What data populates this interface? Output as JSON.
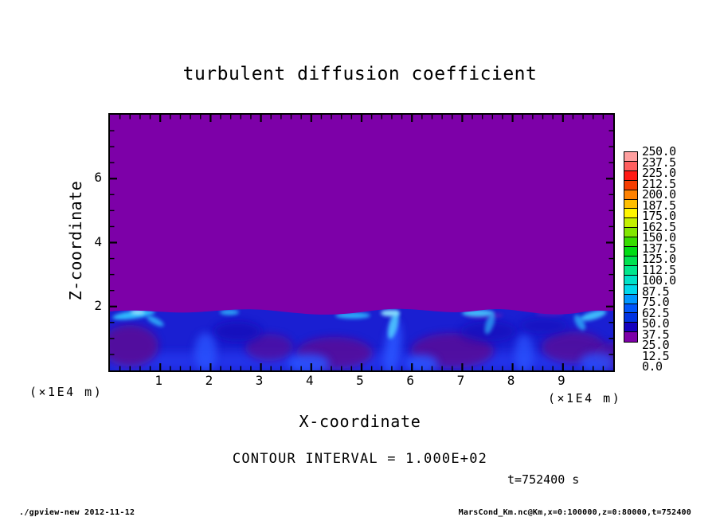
{
  "page": {
    "background": "#FFFFFF"
  },
  "chart_data": {
    "type": "heatmap",
    "title": "turbulent diffusion coefficient",
    "xlabel": "X-coordinate",
    "ylabel": "Z-coordinate",
    "x_unit_label": "(×1E4 m)",
    "z_unit_label": "(×1E4 m)",
    "xlim": [
      0,
      10
    ],
    "ylim": [
      0,
      8
    ],
    "x_ticks": [
      "1",
      "2",
      "3",
      "4",
      "5",
      "6",
      "7",
      "8",
      "9"
    ],
    "x_tick_values": [
      1,
      2,
      3,
      4,
      5,
      6,
      7,
      8,
      9
    ],
    "x_minor_step": 0.2,
    "y_ticks": [
      "2",
      "4",
      "6"
    ],
    "y_tick_values": [
      2,
      4,
      6
    ],
    "y_minor_step": 0.5,
    "contour_note": "CONTOUR INTERVAL = 1.000E+02",
    "time_label": "t=752400 s",
    "colorbar": {
      "labels_top_to_bottom": [
        "250.0",
        "237.5",
        "225.0",
        "212.5",
        "200.0",
        "187.5",
        "175.0",
        "162.5",
        "150.0",
        "137.5",
        "125.0",
        "112.5",
        "100.0",
        "87.5",
        "75.0",
        "62.5",
        "50.0",
        "37.5",
        "25.0",
        "12.5",
        "0.0"
      ],
      "level_min": 0.0,
      "level_max": 250.0,
      "level_step": 12.5,
      "colors_top_to_bottom": [
        "#FFA0A0",
        "#FF5F5F",
        "#FF1914",
        "#F53C00",
        "#FF8200",
        "#FFBE00",
        "#FFF500",
        "#C3F000",
        "#82E600",
        "#37DC00",
        "#00DC14",
        "#00E150",
        "#00E68C",
        "#00E1C8",
        "#00D7EB",
        "#0096FF",
        "#0055FA",
        "#0032E1",
        "#1400BE",
        "#7D00A8"
      ]
    },
    "field_colors": {
      "background_min_bin": "#7D00A8",
      "turbulent_base_blue": "#1A1FD2",
      "plume_cyan": "#30C3FF"
    },
    "field_description": "Field equals lowest bin (0-12.5, purple) everywhere above z≈2; below z≈2 a turbulent convective boundary layer with values roughly 0-100 (dark blue to cyan plumes with purple eddy cores) spans the full x range."
  },
  "footer": {
    "left": "./gpview-new  2012-11-12",
    "right": "MarsCond_Km.nc@Km,x=0:100000,z=0:80000,t=752400"
  }
}
